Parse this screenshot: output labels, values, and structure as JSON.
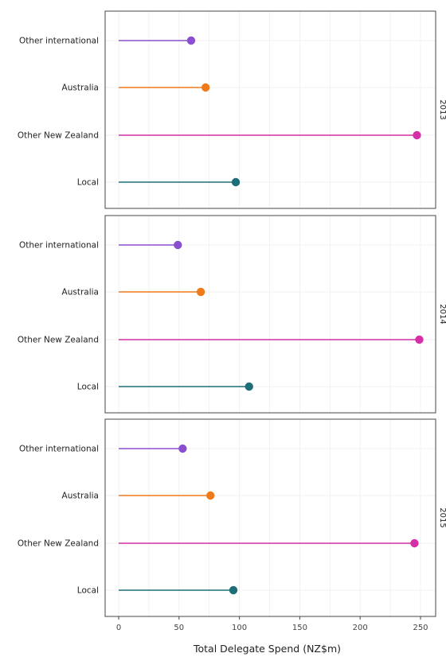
{
  "chart_data": {
    "type": "lollipop",
    "facet_by": "year",
    "xlabel": "Total Delegate Spend (NZ$m)",
    "xlim": [
      -10,
      260
    ],
    "xticks": [
      0,
      50,
      100,
      150,
      200,
      250
    ],
    "categories": [
      "Other international",
      "Australia",
      "Other New Zealand",
      "Local"
    ],
    "category_colors": {
      "Other international": "#8a4fd0",
      "Australia": "#f07a1a",
      "Other New Zealand": "#d42fa6",
      "Local": "#1e6e78"
    },
    "panels": [
      {
        "facet": "2013",
        "values": [
          60,
          72,
          247,
          97
        ]
      },
      {
        "facet": "2014",
        "values": [
          49,
          68,
          249,
          108
        ]
      },
      {
        "facet": "2015",
        "values": [
          53,
          76,
          245,
          95
        ]
      }
    ],
    "grid": true,
    "legend": "none"
  }
}
